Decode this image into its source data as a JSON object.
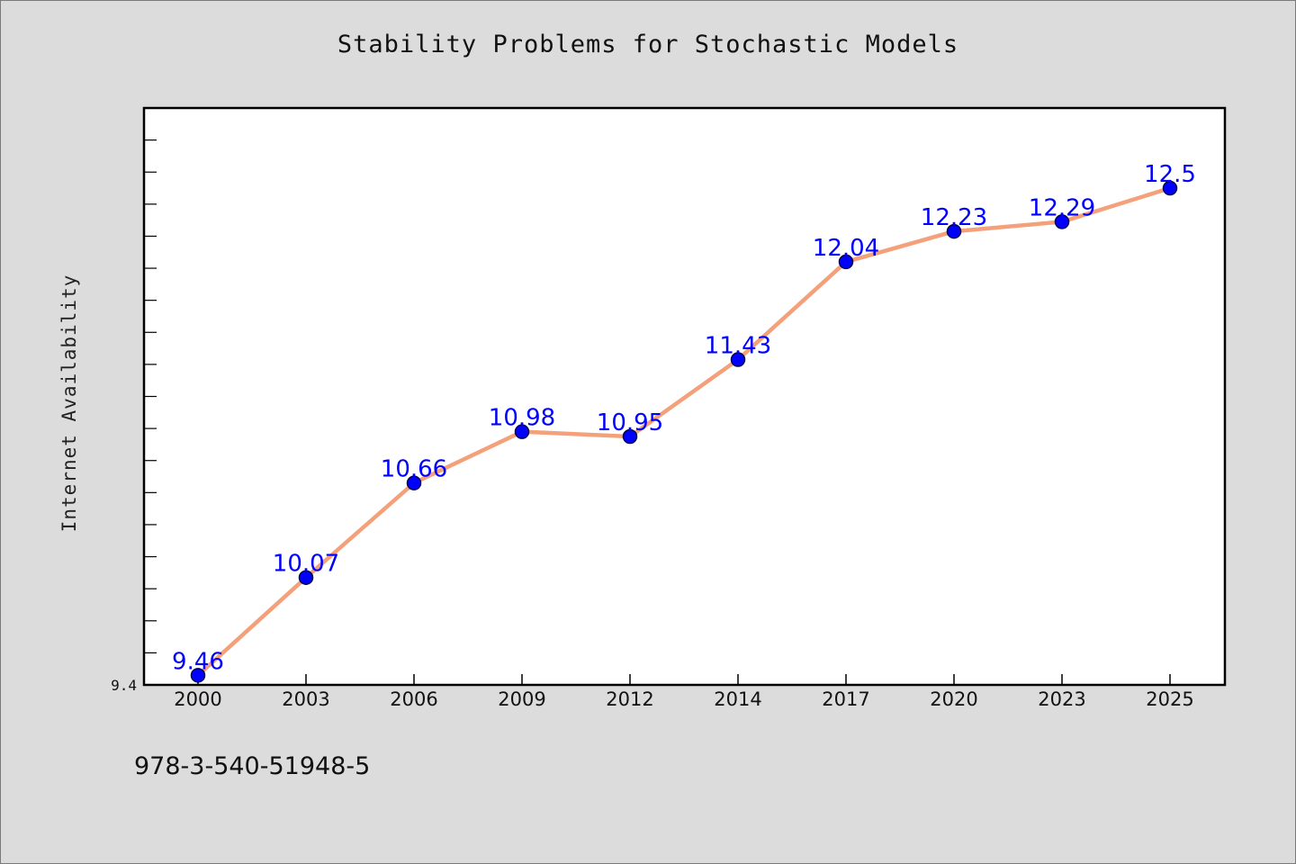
{
  "chart_data": {
    "type": "line",
    "title": "Stability Problems for Stochastic Models",
    "xlabel": "",
    "ylabel": "Internet Availability",
    "categories": [
      "2000",
      "2003",
      "2006",
      "2009",
      "2012",
      "2014",
      "2017",
      "2020",
      "2023",
      "2025"
    ],
    "series": [
      {
        "values": [
          9.46,
          10.07,
          10.66,
          10.98,
          10.95,
          11.43,
          12.04,
          12.23,
          12.29,
          12.5
        ],
        "data_labels": [
          "9.46",
          "10.07",
          "10.66",
          "10.98",
          "10.95",
          "11.43",
          "12.04",
          "12.23",
          "12.29",
          "12.5"
        ]
      }
    ],
    "ytick_labels": [
      "9.4"
    ],
    "ylim": [
      9.4,
      13.0
    ],
    "grid": false,
    "legend": "none",
    "colors": {
      "line": "#f4a07a",
      "marker_fill": "#0000ff",
      "marker_edge": "#00004d",
      "data_label": "#0000ff",
      "plot_background": "#ffffff",
      "figure_background": "#dcdcdc"
    }
  },
  "footer": {
    "isbn": "978-3-540-51948-5"
  }
}
